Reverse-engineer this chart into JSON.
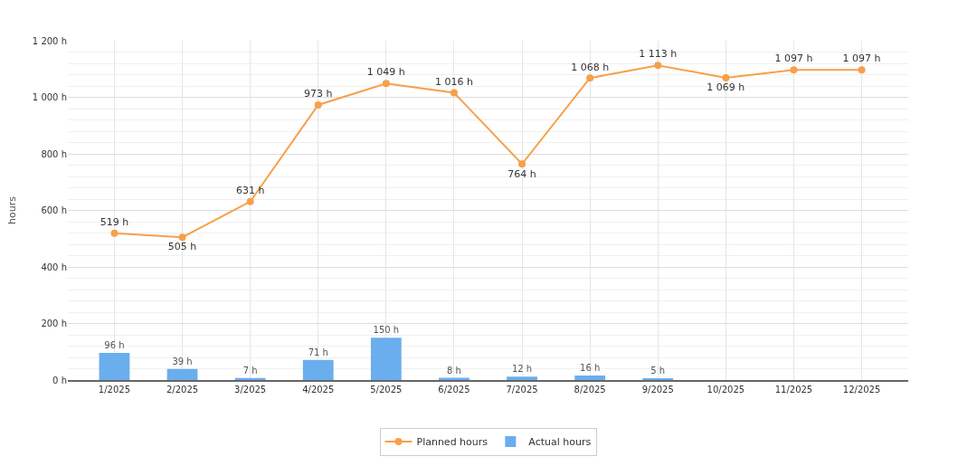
{
  "chart_data": {
    "type": "bar",
    "ylabel": "hours",
    "categories": [
      "1/2025",
      "2/2025",
      "3/2025",
      "4/2025",
      "5/2025",
      "6/2025",
      "7/2025",
      "8/2025",
      "9/2025",
      "10/2025",
      "11/2025",
      "12/2025"
    ],
    "series": [
      {
        "name": "Planned hours",
        "type": "line",
        "color": "#f7a04b",
        "marker": "circle",
        "values": [
          519,
          505,
          631,
          973,
          1049,
          1016,
          764,
          1068,
          1113,
          1069,
          1097,
          1097
        ],
        "value_labels": [
          "519 h",
          "505 h",
          "631 h",
          "973 h",
          "1 049 h",
          "1 016 h",
          "764 h",
          "1 068 h",
          "1 113 h",
          "1 069 h",
          "1 097 h",
          "1 097 h"
        ]
      },
      {
        "name": "Actual hours",
        "color": "#6aaeee",
        "values": [
          96,
          39,
          7,
          71,
          150,
          8,
          12,
          16,
          5,
          null,
          null,
          null
        ],
        "value_labels": [
          "96 h",
          "39 h",
          "7 h",
          "71 h",
          "150 h",
          "8 h",
          "12 h",
          "16 h",
          "5 h",
          null,
          null,
          null
        ]
      }
    ],
    "ylim": [
      0,
      1200
    ],
    "yticks": [
      {
        "value": 0,
        "label": "0 h"
      },
      {
        "value": 200,
        "label": "200 h"
      },
      {
        "value": 400,
        "label": "400 h"
      },
      {
        "value": 600,
        "label": "600 h"
      },
      {
        "value": 800,
        "label": "800 h"
      },
      {
        "value": 1000,
        "label": "1 000 h"
      },
      {
        "value": 1200,
        "label": "1 200 h"
      }
    ],
    "grid": true,
    "legend": "bottom"
  }
}
